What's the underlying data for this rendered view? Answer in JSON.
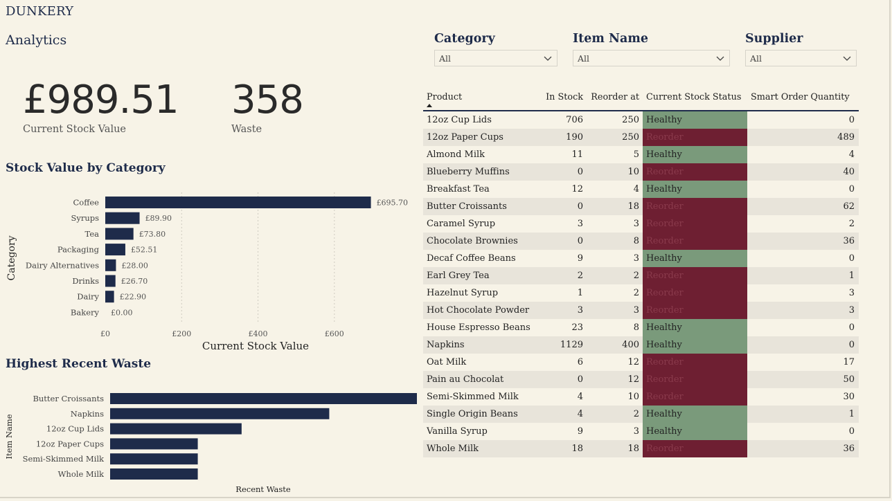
{
  "app_title": "DUNKERY",
  "page_title": "Analytics",
  "kpis": {
    "stock_value": {
      "value": "£989.51",
      "label": "Current Stock Value"
    },
    "waste": {
      "value": "358",
      "label": "Waste"
    }
  },
  "stock_chart_title": "Stock Value by Category",
  "waste_chart_title": "Highest Recent Waste",
  "slicers": [
    {
      "title": "Category",
      "value": "All"
    },
    {
      "title": "Item Name",
      "value": "All"
    },
    {
      "title": "Supplier",
      "value": "All"
    }
  ],
  "colors": {
    "bar": "#1e2b4a",
    "healthy": "#7a9a7b",
    "reorder": "#6e1f32",
    "background": "#f7f3e7"
  },
  "table": {
    "headers": {
      "product": "Product",
      "in_stock": "In Stock",
      "reorder_at": "Reorder at",
      "status": "Current Stock Status",
      "smart_qty": "Smart Order Quantity"
    },
    "rows": [
      {
        "product": "12oz Cup Lids",
        "in_stock": "706",
        "reorder_at": "250",
        "status": "Healthy",
        "qty": "0"
      },
      {
        "product": "12oz Paper Cups",
        "in_stock": "190",
        "reorder_at": "250",
        "status": "Reorder",
        "qty": "489"
      },
      {
        "product": "Almond Milk",
        "in_stock": "11",
        "reorder_at": "5",
        "status": "Healthy",
        "qty": "4"
      },
      {
        "product": "Blueberry Muffins",
        "in_stock": "0",
        "reorder_at": "10",
        "status": "Reorder",
        "qty": "40"
      },
      {
        "product": "Breakfast Tea",
        "in_stock": "12",
        "reorder_at": "4",
        "status": "Healthy",
        "qty": "0"
      },
      {
        "product": "Butter Croissants",
        "in_stock": "0",
        "reorder_at": "18",
        "status": "Reorder",
        "qty": "62"
      },
      {
        "product": "Caramel Syrup",
        "in_stock": "3",
        "reorder_at": "3",
        "status": "Reorder",
        "qty": "2"
      },
      {
        "product": "Chocolate Brownies",
        "in_stock": "0",
        "reorder_at": "8",
        "status": "Reorder",
        "qty": "36"
      },
      {
        "product": "Decaf Coffee Beans",
        "in_stock": "9",
        "reorder_at": "3",
        "status": "Healthy",
        "qty": "0"
      },
      {
        "product": "Earl Grey Tea",
        "in_stock": "2",
        "reorder_at": "2",
        "status": "Reorder",
        "qty": "1"
      },
      {
        "product": "Hazelnut Syrup",
        "in_stock": "1",
        "reorder_at": "2",
        "status": "Reorder",
        "qty": "3"
      },
      {
        "product": "Hot Chocolate Powder",
        "in_stock": "3",
        "reorder_at": "3",
        "status": "Reorder",
        "qty": "3"
      },
      {
        "product": "House Espresso Beans",
        "in_stock": "23",
        "reorder_at": "8",
        "status": "Healthy",
        "qty": "0"
      },
      {
        "product": "Napkins",
        "in_stock": "1129",
        "reorder_at": "400",
        "status": "Healthy",
        "qty": "0"
      },
      {
        "product": "Oat Milk",
        "in_stock": "6",
        "reorder_at": "12",
        "status": "Reorder",
        "qty": "17"
      },
      {
        "product": "Pain au Chocolat",
        "in_stock": "0",
        "reorder_at": "12",
        "status": "Reorder",
        "qty": "50"
      },
      {
        "product": "Semi-Skimmed Milk",
        "in_stock": "4",
        "reorder_at": "10",
        "status": "Reorder",
        "qty": "30"
      },
      {
        "product": "Single Origin Beans",
        "in_stock": "4",
        "reorder_at": "2",
        "status": "Healthy",
        "qty": "1"
      },
      {
        "product": "Vanilla Syrup",
        "in_stock": "9",
        "reorder_at": "3",
        "status": "Healthy",
        "qty": "0"
      },
      {
        "product": "Whole Milk",
        "in_stock": "18",
        "reorder_at": "18",
        "status": "Reorder",
        "qty": "36"
      }
    ]
  },
  "chart_data": [
    {
      "type": "bar",
      "orientation": "horizontal",
      "title": "Stock Value by Category",
      "xlabel": "Current Stock Value",
      "ylabel": "Category",
      "categories": [
        "Coffee",
        "Syrups",
        "Tea",
        "Packaging",
        "Dairy Alternatives",
        "Drinks",
        "Dairy",
        "Bakery"
      ],
      "values": [
        695.7,
        89.9,
        73.8,
        52.51,
        28.0,
        26.7,
        22.9,
        0.0
      ],
      "data_labels": [
        "£695.70",
        "£89.90",
        "£73.80",
        "£52.51",
        "£28.00",
        "£26.70",
        "£22.90",
        "£0.00"
      ],
      "xticks": [
        0,
        200,
        400,
        600
      ],
      "xtick_labels": [
        "£0",
        "£200",
        "£400",
        "£600"
      ],
      "xlim": [
        0,
        740
      ],
      "grid": true
    },
    {
      "type": "bar",
      "orientation": "horizontal",
      "title": "Highest Recent Waste",
      "xlabel": "Recent Waste",
      "ylabel": "Item Name",
      "categories": [
        "Butter Croissants",
        "Napkins",
        "12oz Cup Lids",
        "12oz Paper Cups",
        "Semi-Skimmed Milk",
        "Whole Milk"
      ],
      "values": [
        84,
        60,
        36,
        24,
        24,
        24
      ],
      "xlim": [
        0,
        84
      ],
      "grid": false
    }
  ]
}
